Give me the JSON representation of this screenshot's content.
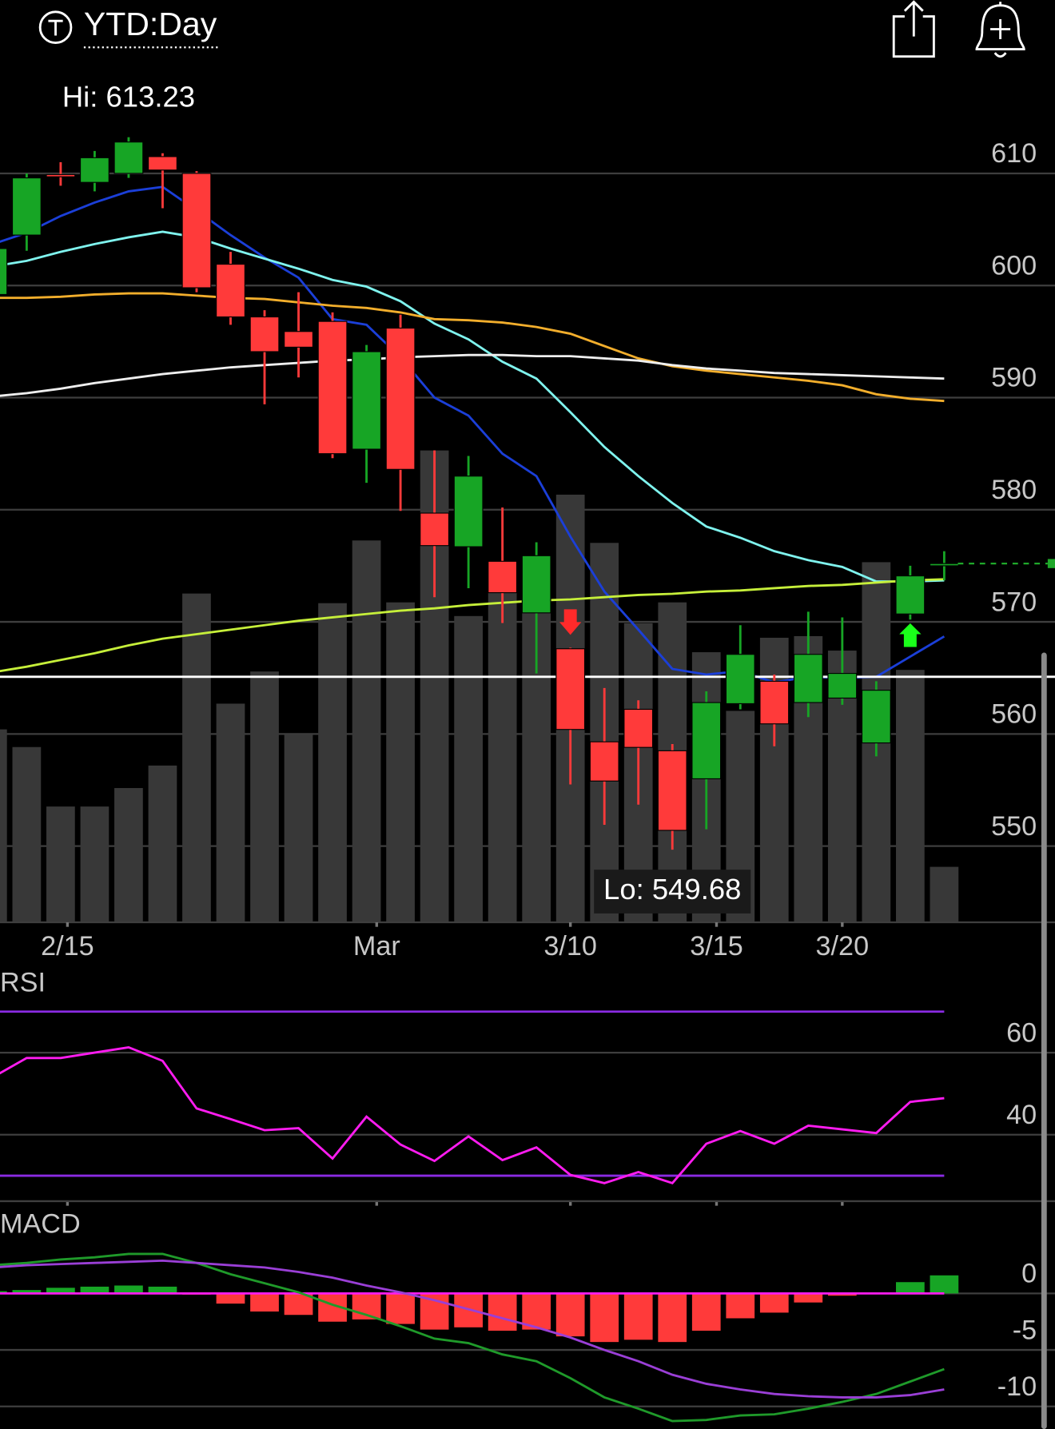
{
  "header": {
    "title": "YTD:Day"
  },
  "chart_data": [
    {
      "type": "candlestick",
      "x": [
        0,
        1,
        2,
        3,
        4,
        5,
        6,
        7,
        8,
        9,
        10,
        11,
        12,
        13,
        14,
        15,
        16,
        17,
        18,
        19,
        20,
        21,
        22,
        23,
        24,
        25,
        26,
        27,
        28
      ],
      "xlim": [
        0.215,
        31.26
      ],
      "xticks": [
        {
          "value": 2.2,
          "label": "2/15"
        },
        {
          "value": 11.3,
          "label": "Mar"
        },
        {
          "value": 17,
          "label": "3/10"
        },
        {
          "value": 21.3,
          "label": "3/15"
        },
        {
          "value": 25,
          "label": "3/20"
        }
      ],
      "open": [
        599.2,
        604.5,
        609.9,
        609.2,
        610.0,
        611.5,
        610.0,
        601.9,
        597.2,
        595.9,
        596.8,
        585.4,
        596.2,
        579.7,
        576.7,
        575.4,
        570.8,
        567.6,
        559.3,
        562.2,
        558.5,
        556.0,
        562.7,
        564.7,
        562.8,
        563.2,
        559.2,
        570.7,
        575.0
      ],
      "high": [
        603.5,
        610.0,
        611.0,
        612.0,
        613.23,
        611.8,
        610.2,
        603.0,
        597.8,
        599.4,
        597.6,
        594.7,
        597.4,
        585.3,
        584.8,
        580.2,
        577.1,
        567.7,
        564.1,
        563.0,
        559.1,
        563.8,
        569.7,
        565.3,
        570.9,
        570.4,
        564.7,
        575.0,
        576.3
      ],
      "low": [
        598.5,
        603.1,
        608.9,
        608.4,
        609.6,
        606.9,
        599.4,
        596.5,
        589.4,
        591.8,
        584.6,
        582.4,
        579.9,
        572.2,
        573.0,
        569.9,
        565.4,
        555.5,
        551.9,
        553.7,
        549.68,
        551.5,
        562.2,
        558.9,
        561.5,
        562.6,
        558.0,
        570.2,
        573.7
      ],
      "close": [
        603.3,
        609.6,
        609.7,
        611.4,
        612.8,
        610.3,
        599.8,
        597.2,
        594.1,
        594.5,
        585.0,
        594.1,
        583.6,
        576.8,
        583.0,
        572.6,
        575.9,
        560.4,
        555.8,
        558.8,
        551.4,
        562.8,
        567.1,
        560.9,
        567.1,
        565.4,
        563.9,
        574.1,
        575.2
      ],
      "up_color": "#17a525",
      "down_color": "#ff3a3a",
      "volume": [
        24,
        21.8,
        14.4,
        14.4,
        16.7,
        19.5,
        40.9,
        27.2,
        31.2,
        23.4,
        39.7,
        47.5,
        39.8,
        58.7,
        38.1,
        41,
        40,
        53.2,
        47.2,
        37.2,
        39.8,
        33.6,
        26.3,
        35.4,
        35.6,
        33.8,
        44.8,
        31.4,
        6.9
      ],
      "volume_lim": [
        0,
        100
      ],
      "volume_color": "#383838",
      "series": [
        {
          "color": "#1b3fd8",
          "values": [
            603.7,
            604.7,
            606.2,
            607.4,
            608.4,
            608.8,
            606.7,
            604.5,
            602.5,
            600.7,
            597.0,
            596.5,
            593.6,
            590.0,
            588.4,
            585.0,
            583.0,
            577.6,
            572.7,
            569.3,
            565.8,
            565.3,
            565.6,
            564.6,
            565.1,
            565.0,
            565.1,
            566.9,
            568.7
          ]
        },
        {
          "color": "#7ff3ee",
          "values": [
            601.7,
            602.2,
            603.0,
            603.7,
            604.3,
            604.8,
            604.3,
            603.3,
            602.4,
            601.5,
            600.5,
            599.9,
            598.6,
            596.6,
            595.2,
            593.2,
            591.7,
            588.7,
            585.6,
            583.0,
            580.6,
            578.5,
            577.5,
            576.3,
            575.5,
            574.9,
            573.6,
            573.6,
            573.7
          ]
        },
        {
          "color": "#f2ae2c",
          "values": [
            598.9,
            598.9,
            599.0,
            599.2,
            599.3,
            599.3,
            599.1,
            598.9,
            598.8,
            598.5,
            598.2,
            598.0,
            597.6,
            597.0,
            596.9,
            596.7,
            596.3,
            595.7,
            594.6,
            593.5,
            592.8,
            592.4,
            592.1,
            591.8,
            591.5,
            591.1,
            590.3,
            589.9,
            589.7
          ]
        },
        {
          "color": "#eeeeee",
          "values": [
            590.1,
            590.4,
            590.8,
            591.3,
            591.7,
            592.1,
            592.4,
            592.7,
            592.9,
            593.1,
            593.3,
            593.4,
            593.6,
            593.7,
            593.8,
            593.8,
            593.7,
            593.7,
            593.5,
            593.3,
            592.9,
            592.6,
            592.4,
            592.2,
            592.1,
            592.0,
            591.9,
            591.8,
            591.7
          ]
        },
        {
          "color": "#c6ef3a",
          "values": [
            565.5,
            566.0,
            566.6,
            567.2,
            567.9,
            568.5,
            568.9,
            569.3,
            569.7,
            570.1,
            570.4,
            570.7,
            571.0,
            571.2,
            571.5,
            571.7,
            571.9,
            572.0,
            572.2,
            572.4,
            572.5,
            572.7,
            572.8,
            573.0,
            573.2,
            573.3,
            573.5,
            573.7,
            573.8
          ]
        }
      ],
      "ylim": [
        543.2,
        614.9
      ],
      "yticks": [
        550,
        560,
        570,
        580,
        590,
        600,
        610
      ],
      "grid": true,
      "hline": {
        "value": 565.1,
        "color": "#ffffff"
      },
      "annotations": [
        {
          "text": "Hi: 613.23"
        },
        {
          "text": "Lo: 549.68"
        }
      ],
      "signals": [
        {
          "index": 17,
          "direction": "down",
          "color": "#ff2a2a"
        },
        {
          "index": 27,
          "direction": "up",
          "color": "#1aff1a"
        }
      ],
      "last_price_color": "#1fa82a"
    },
    {
      "type": "line",
      "title": "RSI",
      "x": [
        0,
        1,
        2,
        3,
        4,
        5,
        6,
        7,
        8,
        9,
        10,
        11,
        12,
        13,
        14,
        15,
        16,
        17,
        18,
        19,
        20,
        21,
        22,
        23,
        24,
        25,
        26,
        27,
        28
      ],
      "xlim": [
        0.215,
        31.26
      ],
      "series": [
        {
          "color": "#ff1cf0",
          "values": [
            54.0,
            58.7,
            58.7,
            60.0,
            61.3,
            58.0,
            46.4,
            43.8,
            41.1,
            41.6,
            34.2,
            44.4,
            37.6,
            33.6,
            39.6,
            33.8,
            36.9,
            30.2,
            28.2,
            30.9,
            28.2,
            37.8,
            40.9,
            37.8,
            42.2,
            41.3,
            40.4,
            48.0,
            48.9
          ]
        }
      ],
      "levels": [
        70,
        30
      ],
      "level_color": "#8a2be2",
      "ylim": [
        23.8,
        80
      ],
      "yticks": [
        60,
        40
      ],
      "grid": true
    },
    {
      "type": "macd",
      "title": "MACD",
      "x": [
        0,
        1,
        2,
        3,
        4,
        5,
        6,
        7,
        8,
        9,
        10,
        11,
        12,
        13,
        14,
        15,
        16,
        17,
        18,
        19,
        20,
        21,
        22,
        23,
        24,
        25,
        26,
        27,
        28
      ],
      "xlim": [
        0.215,
        31.26
      ],
      "histogram": [
        0.2,
        0.3,
        0.5,
        0.6,
        0.7,
        0.6,
        -0.1,
        -0.9,
        -1.6,
        -1.9,
        -2.5,
        -2.3,
        -2.7,
        -3.2,
        -3.0,
        -3.3,
        -3.2,
        -3.8,
        -4.3,
        -4.1,
        -4.3,
        -3.3,
        -2.2,
        -1.7,
        -0.8,
        -0.2,
        0.0,
        1.0,
        1.6
      ],
      "up_color": "#17a525",
      "down_color": "#ff3a3a",
      "zero_color": "#ff1cf0",
      "series": [
        {
          "color": "#1f9a2a",
          "values": [
            2.5,
            2.7,
            3.0,
            3.2,
            3.5,
            3.5,
            2.7,
            1.7,
            0.9,
            0.1,
            -1.0,
            -1.9,
            -2.9,
            -4.0,
            -4.4,
            -5.4,
            -6.0,
            -7.5,
            -9.2,
            -10.2,
            -11.3,
            -11.2,
            -10.8,
            -10.7,
            -10.2,
            -9.6,
            -8.9,
            -7.8,
            -6.7
          ]
        },
        {
          "color": "#9a3fd6",
          "values": [
            2.3,
            2.5,
            2.6,
            2.7,
            2.8,
            2.9,
            2.7,
            2.5,
            2.3,
            1.9,
            1.4,
            0.7,
            0.1,
            -0.6,
            -1.4,
            -2.2,
            -3.0,
            -3.9,
            -5.0,
            -6.0,
            -7.2,
            -8.0,
            -8.5,
            -8.9,
            -9.1,
            -9.2,
            -9.2,
            -9.0,
            -8.5
          ]
        }
      ],
      "ylim": [
        -12,
        7.2
      ],
      "yticks": [
        0,
        -5,
        -10
      ],
      "grid": true
    }
  ]
}
